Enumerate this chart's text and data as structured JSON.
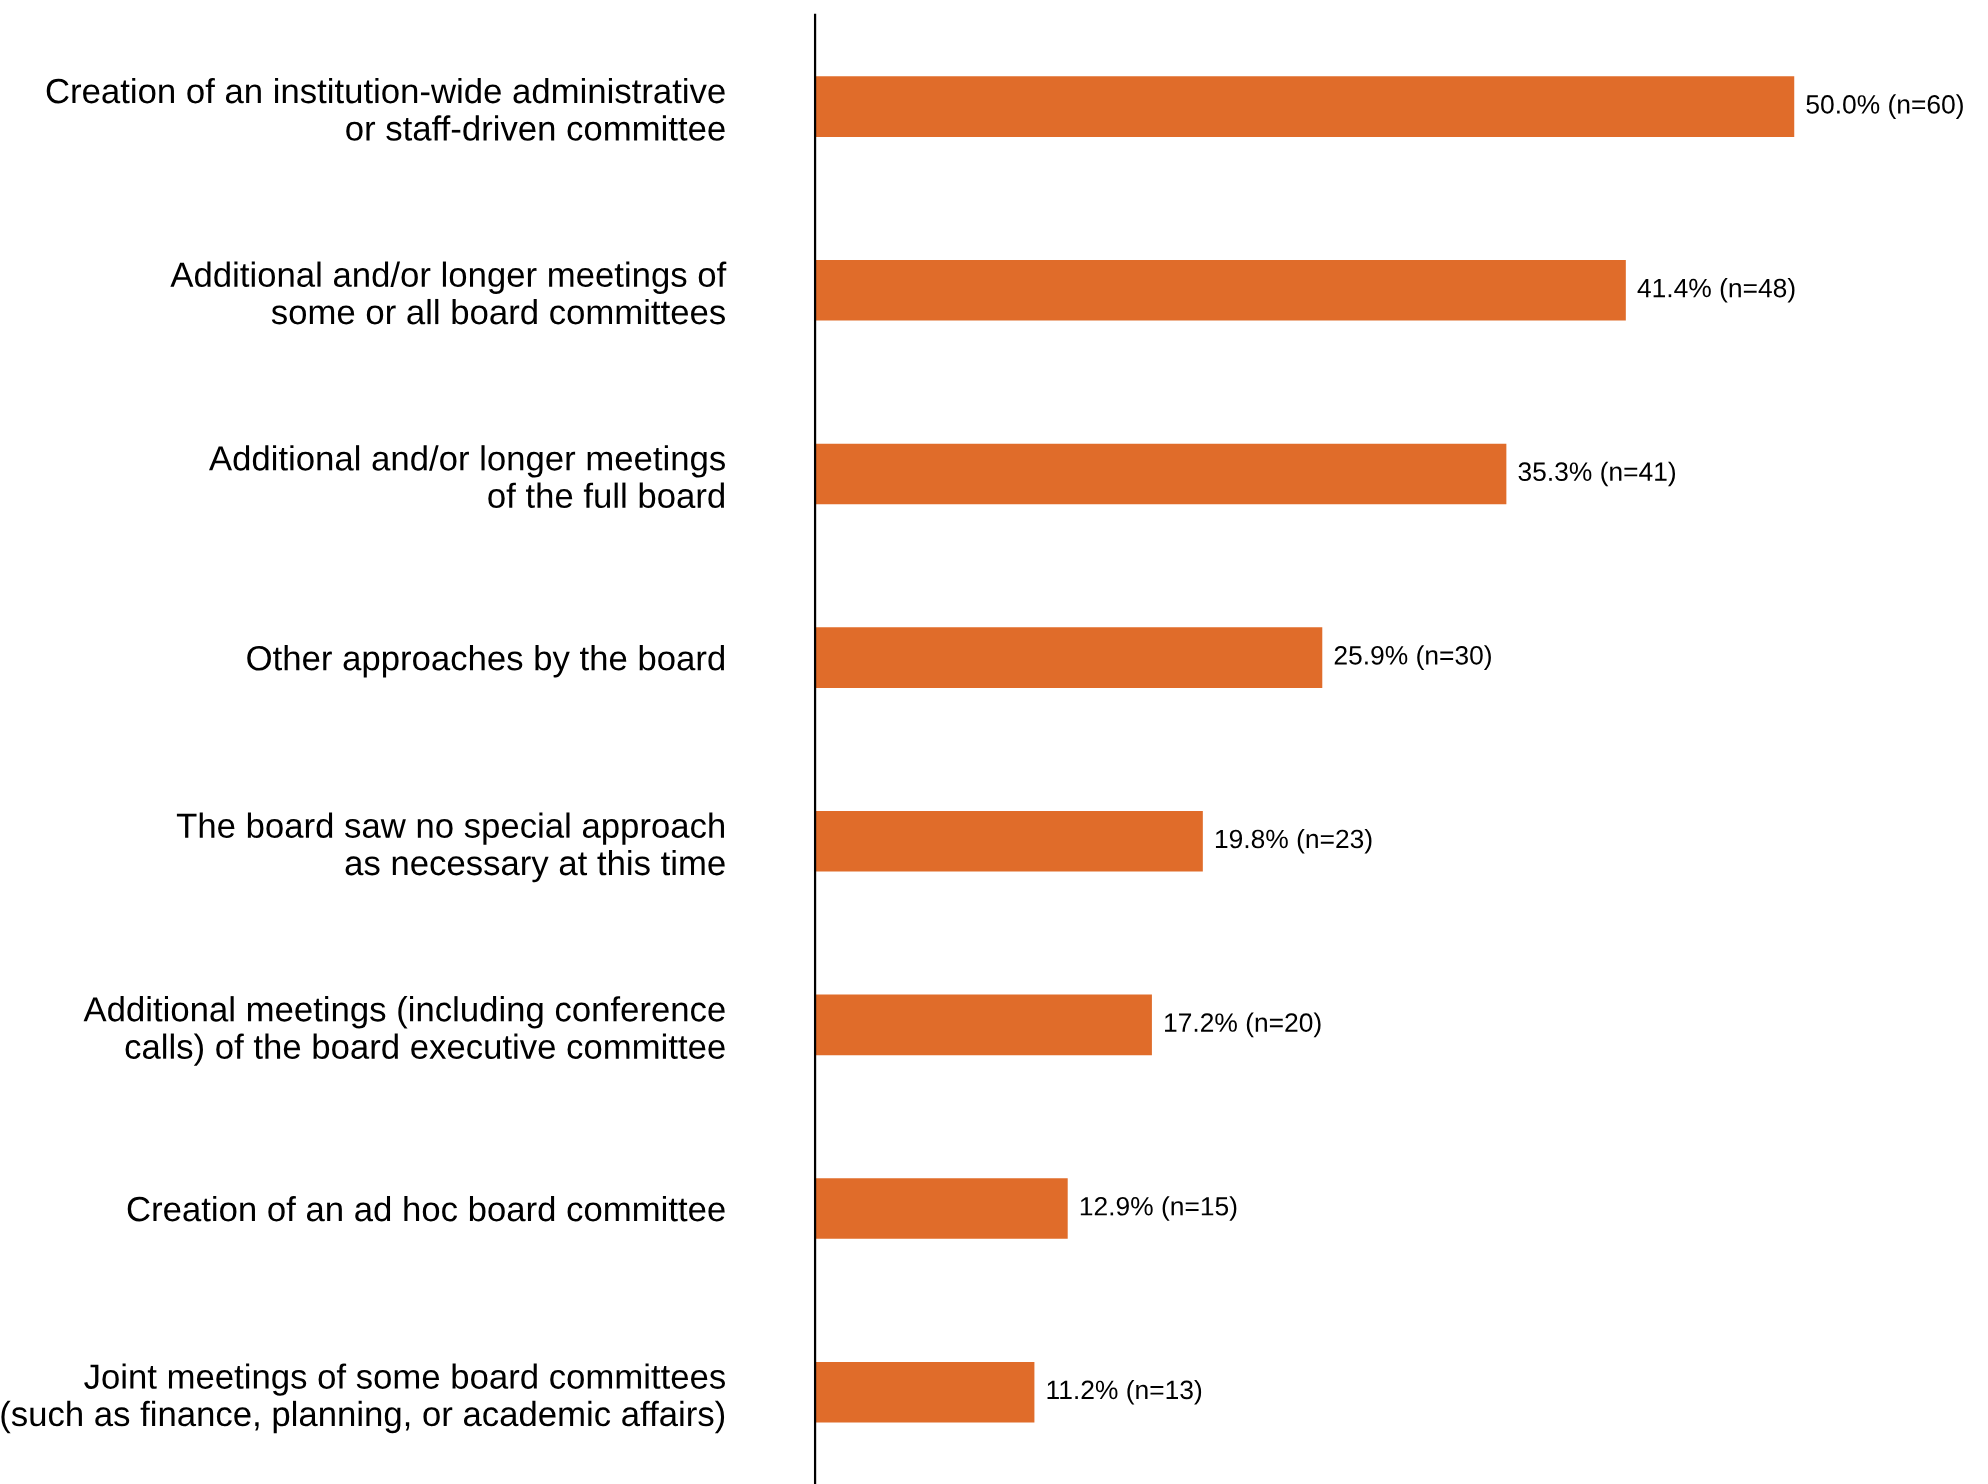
{
  "chart_data": {
    "type": "bar",
    "orientation": "horizontal",
    "categories": [
      "Creation of an institution-wide administrative\nor staff-driven committee",
      "Additional and/or longer meetings of\nsome or all board committees",
      "Additional and/or longer meetings\nof the full board",
      "Other approaches by the board",
      "The board saw no special approach\nas necessary at this time",
      "Additional meetings (including conference\ncalls) of the board executive committee",
      "Creation of an ad hoc board committee",
      "Joint meetings of some board committees\n(such as finance, planning, or academic affairs)"
    ],
    "values": [
      50.0,
      41.4,
      35.3,
      25.9,
      19.8,
      17.2,
      12.9,
      11.2
    ],
    "value_labels": [
      "50.0% (n=60)",
      "41.4% (n=48)",
      "35.3% (n=41)",
      "25.9% (n=30)",
      "19.8% (n=23)",
      "17.2% (n=20)",
      "12.9% (n=15)",
      "11.2% (n=13)"
    ],
    "color": "#e06c2a",
    "grid": false,
    "legend": false
  }
}
